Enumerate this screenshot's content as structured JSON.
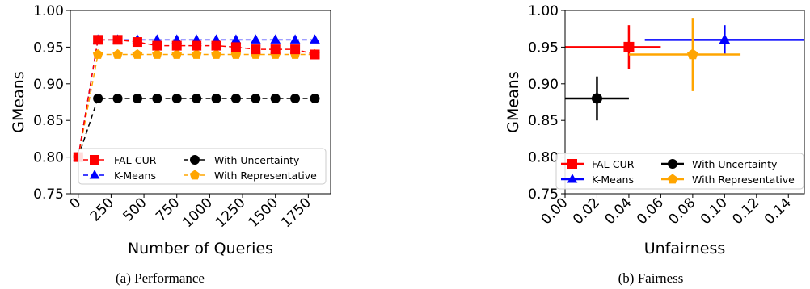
{
  "chart_data": [
    {
      "type": "line",
      "caption": "(a) Performance",
      "xlabel": "Number of Queries",
      "ylabel": "GMeans",
      "xlim": [
        -60,
        1920
      ],
      "ylim": [
        0.75,
        1.0
      ],
      "xticks": [
        0,
        250,
        500,
        750,
        1000,
        1250,
        1500,
        1750
      ],
      "xtick_labels": [
        "0",
        "250",
        "500",
        "750",
        "1000",
        "1250",
        "1500",
        "1750"
      ],
      "yticks": [
        0.75,
        0.8,
        0.85,
        0.9,
        0.95,
        1.0
      ],
      "ytick_labels": [
        "0.75",
        "0.80",
        "0.85",
        "0.90",
        "0.95",
        "1.00"
      ],
      "legend_position": "bottom-right",
      "x": [
        0,
        150,
        300,
        450,
        600,
        750,
        900,
        1050,
        1200,
        1350,
        1500,
        1650,
        1800
      ],
      "series": [
        {
          "name": "K-Means",
          "color": "#0000ff",
          "marker": "triangle",
          "dash": true,
          "values": [
            0.8,
            0.96,
            0.96,
            0.96,
            0.96,
            0.96,
            0.96,
            0.96,
            0.96,
            0.96,
            0.96,
            0.96,
            0.96
          ]
        },
        {
          "name": "With Uncertainty",
          "color": "#000000",
          "marker": "circle",
          "dash": true,
          "values": [
            0.8,
            0.88,
            0.88,
            0.88,
            0.88,
            0.88,
            0.88,
            0.88,
            0.88,
            0.88,
            0.88,
            0.88,
            0.88
          ]
        },
        {
          "name": "With Representative",
          "color": "#ffa500",
          "marker": "pentagon",
          "dash": true,
          "values": [
            0.8,
            0.94,
            0.94,
            0.94,
            0.94,
            0.94,
            0.94,
            0.94,
            0.94,
            0.94,
            0.94,
            0.94,
            0.94
          ]
        },
        {
          "name": "FAL-CUR",
          "color": "#ff0000",
          "marker": "square",
          "dash": true,
          "values": [
            0.8,
            0.96,
            0.96,
            0.957,
            0.952,
            0.952,
            0.952,
            0.952,
            0.95,
            0.947,
            0.947,
            0.947,
            0.94
          ]
        }
      ]
    },
    {
      "type": "scatter",
      "caption": "(b) Fairness",
      "xlabel": "Unfairness",
      "ylabel": "GMeans",
      "xlim": [
        0.0,
        0.15
      ],
      "ylim": [
        0.75,
        1.0
      ],
      "xticks": [
        0.0,
        0.02,
        0.04,
        0.06,
        0.08,
        0.1,
        0.12,
        0.14
      ],
      "xtick_labels": [
        "0.00",
        "0.02",
        "0.04",
        "0.06",
        "0.08",
        "0.10",
        "0.12",
        "0.14"
      ],
      "yticks": [
        0.75,
        0.8,
        0.85,
        0.9,
        0.95,
        1.0
      ],
      "ytick_labels": [
        "0.75",
        "0.80",
        "0.85",
        "0.90",
        "0.95",
        "1.00"
      ],
      "legend_position": "bottom",
      "points": [
        {
          "name": "FAL-CUR",
          "color": "#ff0000",
          "marker": "square",
          "x": 0.04,
          "y": 0.95,
          "xerr": [
            0.04,
            0.02
          ],
          "yerr": [
            0.03,
            0.03
          ]
        },
        {
          "name": "K-Means",
          "color": "#0000ff",
          "marker": "triangle",
          "x": 0.1,
          "y": 0.96,
          "xerr": [
            0.05,
            0.05
          ],
          "yerr": [
            0.02,
            0.02
          ]
        },
        {
          "name": "With Uncertainty",
          "color": "#000000",
          "marker": "circle",
          "x": 0.02,
          "y": 0.88,
          "xerr": [
            0.02,
            0.02
          ],
          "yerr": [
            0.03,
            0.03
          ]
        },
        {
          "name": "With Representative",
          "color": "#ffa500",
          "marker": "pentagon",
          "x": 0.08,
          "y": 0.94,
          "xerr": [
            0.04,
            0.03
          ],
          "yerr": [
            0.05,
            0.05
          ]
        }
      ]
    }
  ]
}
